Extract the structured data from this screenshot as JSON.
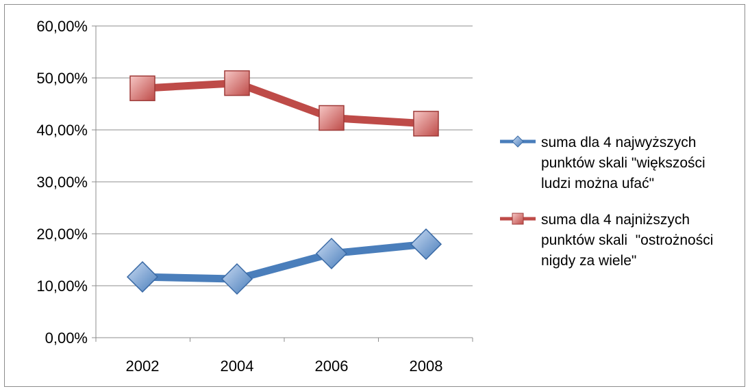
{
  "chart_data": {
    "type": "line",
    "title": "",
    "xlabel": "",
    "ylabel": "",
    "categories": [
      "2002",
      "2004",
      "2006",
      "2008"
    ],
    "ylim": [
      0,
      0.6
    ],
    "y_ticks": [
      "0,00%",
      "10,00%",
      "20,00%",
      "30,00%",
      "40,00%",
      "50,00%",
      "60,00%"
    ],
    "grid": true,
    "legend_position": "right",
    "series": [
      {
        "name": "suma dla 4 najwyższych punktów skali \"większości ludzi można ufać\"",
        "legend_lines": [
          "suma dla 4 najwyższych",
          "punktów skali \"większości",
          "ludzi można ufać\""
        ],
        "marker": "diamond",
        "color": "#4a7ebb",
        "values": [
          0.117,
          0.113,
          0.162,
          0.18
        ]
      },
      {
        "name": "suma dla 4 najniższych punktów skali \"ostrożności nigdy za wiele\"",
        "legend_lines": [
          "suma dla 4 najniższych",
          "punktów skali  \"ostrożności",
          "nigdy za wiele\""
        ],
        "marker": "square",
        "color": "#be4b48",
        "values": [
          0.48,
          0.49,
          0.423,
          0.412
        ]
      }
    ]
  }
}
